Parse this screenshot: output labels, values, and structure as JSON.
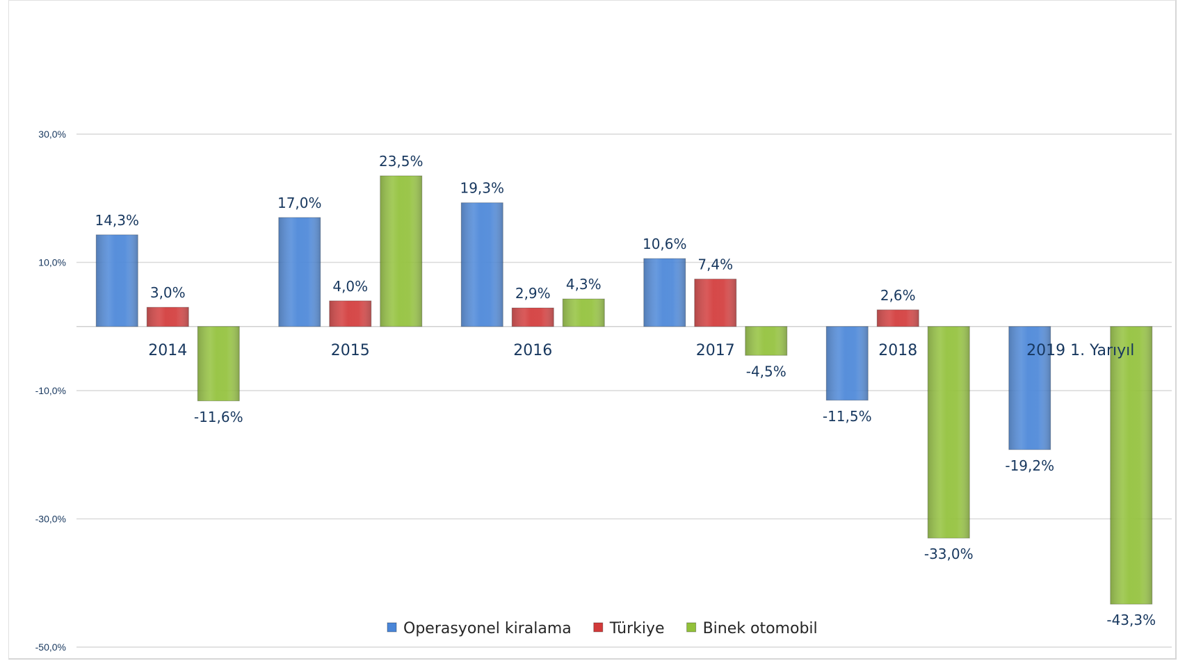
{
  "chart_data": {
    "type": "bar",
    "categories": [
      "2014",
      "2015",
      "2016",
      "2017",
      "2018",
      "2019 1. Yarıyıl"
    ],
    "series": [
      {
        "name": "Operasyonel kiralama",
        "color": "#4a86d8",
        "values": [
          14.3,
          17.0,
          19.3,
          10.6,
          -11.5,
          -19.2
        ],
        "labels": [
          "14,3%",
          "17,0%",
          "19,3%",
          "10,6%",
          "-11,5%",
          "-19,2%"
        ]
      },
      {
        "name": "Türkiye",
        "color": "#d23a3a",
        "values": [
          3.0,
          4.0,
          2.9,
          7.4,
          2.6,
          null
        ],
        "labels": [
          "3,0%",
          "4,0%",
          "2,9%",
          "7,4%",
          "2,6%",
          ""
        ]
      },
      {
        "name": "Binek otomobil",
        "color": "#92c13a",
        "values": [
          -11.6,
          23.5,
          4.3,
          -4.5,
          -33.0,
          -43.3
        ],
        "labels": [
          "-11,6%",
          "23,5%",
          "4,3%",
          "-4,5%",
          "-33,0%",
          "-43,3%"
        ]
      }
    ],
    "yticks": [
      30,
      10,
      -10,
      -30,
      -50
    ],
    "ytick_labels": [
      "30,0%",
      "10,0%",
      "-10,0%",
      "-30,0%",
      "-50,0%"
    ],
    "ylim": [
      -50,
      30
    ],
    "grid": true,
    "legend": "bottom-center",
    "title": "",
    "xlabel": "",
    "ylabel": ""
  }
}
